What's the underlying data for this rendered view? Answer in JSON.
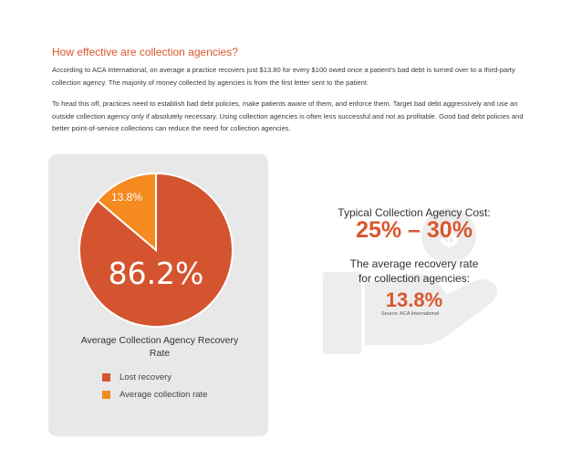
{
  "heading": "How effective are collection agencies?",
  "paragraphs": [
    "According to ACA International, on average a practice recovers just $13.80 for every $100 owed once a patient’s bad debt is turned over to a third-party collection agency. The majority of money collected by agencies is from the first letter sent to the patient.",
    "To head this off, practices need to establish bad debt policies, make patients aware of them, and enforce them. Target bad debt aggressively and use an outside collection agency only if absolutely necessary. Using collection agencies is often less successful and not as profitable. Good bad debt policies and better point-of-service collections can reduce the need for collection agencies."
  ],
  "chart_data": {
    "type": "pie",
    "title": "Average Collection Agency Recovery Rate",
    "slices": [
      {
        "name": "Lost recovery",
        "value": 86.2,
        "label": "86.2%",
        "color": "#d4542f"
      },
      {
        "name": "Average collection rate",
        "value": 13.8,
        "label": "13.8%",
        "color": "#f58a20"
      }
    ],
    "legend_placement": "bottom"
  },
  "callouts": {
    "cost_caption": "Typical Collection Agency Cost:",
    "cost_value": "25% – 30%",
    "rate_caption_line1": "The average recovery rate",
    "rate_caption_line2": "for collection agencies:",
    "rate_value": "13.8%",
    "source": "Source: ACA International"
  },
  "icon": {
    "name": "hand-holding-dollar-icon",
    "color": "#ededed"
  }
}
